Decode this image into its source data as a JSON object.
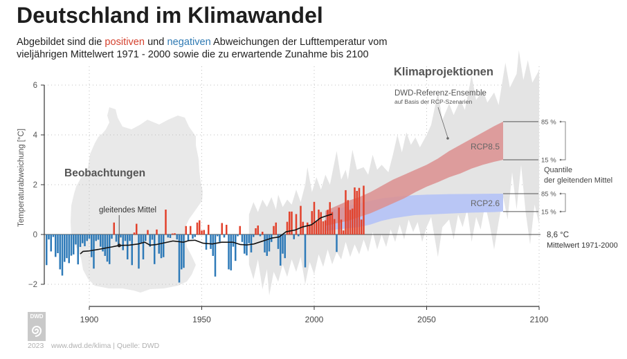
{
  "title": "Deutschland im Klimawandel",
  "subtitle": {
    "line1_prefix": "Abgebildet sind die",
    "positive_word": "positiven",
    "connector": "und",
    "negative_word": "negativen",
    "line1_suffix": "Abweichungen der Lufttemperatur vom",
    "line2": "vieljährigen Mittelwert 1971 - 2000 sowie die zu erwartende Zunahme bis 2100"
  },
  "logo": {
    "text": "DWD",
    "icon": "dwd-spiral-icon"
  },
  "footer": {
    "year": "2023",
    "source": "www.dwd.de/klima | Quelle: DWD"
  },
  "colors": {
    "positive": "#e2412b",
    "negative": "#2e7ab8",
    "rcp85": "#dc8f8f",
    "rcp26": "#b6c4f6",
    "ensemble": "#e4e4e4",
    "map": "#e9e9e9",
    "moving_average": "#111111"
  },
  "chart_data": {
    "type": "bar",
    "title": "Deutschland im Klimawandel",
    "xlabel": "",
    "ylabel": "Temperaturabweichung [°C]",
    "xlim": [
      1880,
      2100
    ],
    "ylim": [
      -2.9,
      6
    ],
    "x_ticks": [
      1900,
      1950,
      2000,
      2050,
      2100
    ],
    "x_tick_labels": [
      "1900",
      "1950",
      "2000",
      "2050",
      "2100"
    ],
    "y_ticks": [
      -2,
      0,
      2,
      4,
      6
    ],
    "y_tick_labels": [
      "−2",
      "0",
      "2",
      "4",
      "6"
    ],
    "grid": true,
    "reference": {
      "value": 0,
      "label": "8,6 °C",
      "sublabel": "Mittelwert 1971-2000"
    },
    "observations": {
      "name": "Beobachtungen",
      "start_year": 1881,
      "end_year": 2022,
      "values": [
        -1.23,
        -0.2,
        -0.68,
        -0.1,
        -0.9,
        -0.75,
        -1.4,
        -1.65,
        -1.1,
        -0.95,
        -1.15,
        -0.85,
        -0.8,
        -0.4,
        -1.2,
        -0.5,
        -0.35,
        -0.47,
        -0.26,
        -0.17,
        -0.91,
        -1.37,
        -0.26,
        -0.21,
        -0.49,
        -0.68,
        -0.86,
        -1.09,
        -1.19,
        -0.17,
        0.48,
        -0.29,
        -0.44,
        -0.12,
        -0.63,
        -0.26,
        -1.0,
        -0.26,
        -1.23,
        0.08,
        0.43,
        -1.37,
        -0.35,
        -1.0,
        -0.26,
        0.18,
        -0.49,
        -0.21,
        -1.19,
        0.2,
        -0.77,
        -0.95,
        -0.91,
        1.0,
        -0.12,
        -0.14,
        0.04,
        0.05,
        -0.2,
        -1.93,
        -1.4,
        -1.34,
        0.34,
        -0.26,
        0.34,
        -0.17,
        -0.1,
        0.48,
        0.57,
        0.16,
        0.18,
        -0.61,
        0.39,
        -0.58,
        -0.86,
        -1.69,
        -0.07,
        -0.3,
        0.46,
        -0.12,
        0.39,
        -1.4,
        -1.44,
        -0.49,
        -1.06,
        -0.07,
        0.34,
        -0.3,
        -0.77,
        -0.84,
        -0.35,
        -0.72,
        -0.1,
        0.25,
        0.36,
        -0.07,
        0.11,
        -0.72,
        -0.86,
        -0.68,
        -0.3,
        0.34,
        0.48,
        -0.58,
        -1.25,
        -0.77,
        -0.95,
        0.51,
        0.92,
        0.92,
        -0.19,
        0.82,
        -0.07,
        1.15,
        0.51,
        -1.32,
        0.48,
        0.39,
        0.94,
        1.31,
        0.53,
        1.0,
        0.9,
        0.53,
        0.57,
        0.99,
        1.3,
        0.9,
        0.62,
        -0.7,
        1.08,
        0.6,
        0.16,
        1.78,
        1.38,
        0.99,
        1.04,
        1.89,
        1.75,
        1.87,
        0.6,
        1.96
      ]
    },
    "moving_average": {
      "name": "gleitendes Mittel",
      "points": [
        [
          1896,
          -0.78
        ],
        [
          1897.2,
          -0.68
        ],
        [
          1900,
          -0.66
        ],
        [
          1904,
          -0.6
        ],
        [
          1907.5,
          -0.54
        ],
        [
          1910,
          -0.5
        ],
        [
          1913.3,
          -0.44
        ],
        [
          1917.7,
          -0.43
        ],
        [
          1921.8,
          -0.38
        ],
        [
          1924.7,
          -0.31
        ],
        [
          1927,
          -0.43
        ],
        [
          1930,
          -0.4
        ],
        [
          1934.2,
          -0.32
        ],
        [
          1937.2,
          -0.26
        ],
        [
          1941.9,
          -0.31
        ],
        [
          1944.5,
          -0.24
        ],
        [
          1947,
          -0.23
        ],
        [
          1950.6,
          -0.35
        ],
        [
          1954.7,
          -0.38
        ],
        [
          1958.8,
          -0.31
        ],
        [
          1963.9,
          -0.31
        ],
        [
          1967,
          -0.4
        ],
        [
          1970,
          -0.42
        ],
        [
          1973.2,
          -0.38
        ],
        [
          1978.3,
          -0.23
        ],
        [
          1981.3,
          -0.14
        ],
        [
          1984.4,
          -0.1
        ],
        [
          1987.5,
          0.11
        ],
        [
          1991.6,
          0.18
        ],
        [
          1994.7,
          0.3
        ],
        [
          1998.8,
          0.39
        ],
        [
          2002.9,
          0.67
        ],
        [
          2005.5,
          0.75
        ],
        [
          2008,
          0.82
        ]
      ]
    },
    "ensemble": {
      "name": "DWD-Referenz-Ensemble",
      "upper": [
        [
          1971,
          0.8
        ],
        [
          1973,
          1.3
        ],
        [
          1975,
          0.9
        ],
        [
          1977,
          1.4
        ],
        [
          1979,
          1.1
        ],
        [
          1981,
          1.5
        ],
        [
          1983,
          1.0
        ],
        [
          1984,
          1.6
        ],
        [
          1986,
          1.1
        ],
        [
          1988,
          1.4
        ],
        [
          1990,
          1.2
        ],
        [
          1992,
          1.8
        ],
        [
          1994,
          1.3
        ],
        [
          1996,
          2.0
        ],
        [
          1997,
          2.7
        ],
        [
          1999,
          1.7
        ],
        [
          2001,
          2.3
        ],
        [
          2003,
          1.8
        ],
        [
          2005,
          2.4
        ],
        [
          2007,
          2.0
        ],
        [
          2010,
          3.35
        ],
        [
          2012,
          2.2
        ],
        [
          2014,
          2.6
        ],
        [
          2015,
          2.2
        ],
        [
          2017,
          3.4
        ],
        [
          2019,
          2.6
        ],
        [
          2022,
          2.7
        ],
        [
          2024,
          2.4
        ],
        [
          2026,
          3.2
        ],
        [
          2028,
          2.6
        ],
        [
          2030,
          2.8
        ],
        [
          2033,
          2.5
        ],
        [
          2035,
          3.2
        ],
        [
          2037,
          4.0
        ],
        [
          2039,
          3.3
        ],
        [
          2041,
          4.1
        ],
        [
          2043,
          3.6
        ],
        [
          2045,
          3.9
        ],
        [
          2047,
          3.5
        ],
        [
          2050,
          4.0
        ],
        [
          2052,
          4.4
        ],
        [
          2055,
          5.7
        ],
        [
          2057,
          4.6
        ],
        [
          2060,
          5.25
        ],
        [
          2062,
          4.8
        ],
        [
          2065,
          5.4
        ],
        [
          2067,
          5.0
        ],
        [
          2070,
          6.4
        ],
        [
          2072,
          5.4
        ],
        [
          2075,
          5.8
        ],
        [
          2077,
          5.3
        ],
        [
          2080,
          5.7
        ],
        [
          2082,
          5.2
        ],
        [
          2085,
          6.9
        ],
        [
          2087,
          5.9
        ],
        [
          2090,
          6.45
        ],
        [
          2091,
          7.4
        ],
        [
          2093,
          6.2
        ],
        [
          2095,
          7.0
        ],
        [
          2097,
          6.1
        ],
        [
          2100,
          6.6
        ]
      ],
      "lower": [
        [
          1971,
          -1.2
        ],
        [
          1973,
          -1.8
        ],
        [
          1975,
          -1.0
        ],
        [
          1977,
          -2.2
        ],
        [
          1979,
          -1.4
        ],
        [
          1980,
          -2.45
        ],
        [
          1982,
          -1.5
        ],
        [
          1984,
          -1.9
        ],
        [
          1986,
          -1.2
        ],
        [
          1988,
          -1.7
        ],
        [
          1990,
          -1.0
        ],
        [
          1992,
          -1.5
        ],
        [
          1994,
          -0.9
        ],
        [
          1996,
          -2.0
        ],
        [
          1998,
          -1.1
        ],
        [
          2000,
          -1.6
        ],
        [
          2002,
          -0.8
        ],
        [
          2004,
          -1.3
        ],
        [
          2006,
          -0.6
        ],
        [
          2008,
          -1.2
        ],
        [
          2010,
          -0.7
        ],
        [
          2012,
          -1.0
        ],
        [
          2014,
          -0.3
        ],
        [
          2016,
          -0.9
        ],
        [
          2018,
          -0.4
        ],
        [
          2020,
          -0.8
        ],
        [
          2022,
          -0.2
        ],
        [
          2024,
          -0.7
        ],
        [
          2026,
          0.1
        ],
        [
          2028,
          -0.6
        ],
        [
          2030,
          0.0
        ],
        [
          2032,
          -0.5
        ],
        [
          2034,
          0.2
        ],
        [
          2036,
          -0.3
        ],
        [
          2038,
          0.4
        ],
        [
          2040,
          -0.2
        ],
        [
          2042,
          0.6
        ],
        [
          2044,
          0.1
        ],
        [
          2046,
          0.5
        ],
        [
          2048,
          -0.3
        ],
        [
          2050,
          0.3
        ],
        [
          2052,
          0.7
        ],
        [
          2055,
          -0.9
        ],
        [
          2057,
          0.3
        ],
        [
          2060,
          0.6
        ],
        [
          2062,
          -0.2
        ],
        [
          2064,
          0.8
        ],
        [
          2066,
          0.3
        ],
        [
          2068,
          1.0
        ],
        [
          2070,
          -0.3
        ],
        [
          2072,
          0.7
        ],
        [
          2074,
          0.2
        ],
        [
          2076,
          1.2
        ],
        [
          2078,
          0.4
        ],
        [
          2080,
          -0.6
        ],
        [
          2082,
          0.5
        ],
        [
          2084,
          1.5
        ],
        [
          2086,
          0.6
        ],
        [
          2088,
          2.5
        ],
        [
          2090,
          1.0
        ],
        [
          2092,
          2.8
        ],
        [
          2094,
          0.9
        ],
        [
          2096,
          -0.4
        ],
        [
          2098,
          1.2
        ],
        [
          2100,
          0.4
        ]
      ]
    },
    "scenarios": [
      {
        "name": "RCP8.5",
        "years": [
          2005,
          2010,
          2015,
          2020,
          2025,
          2030,
          2035,
          2040,
          2045,
          2050,
          2055,
          2060,
          2065,
          2070,
          2075,
          2080,
          2084
        ],
        "p15": [
          0.35,
          0.45,
          0.55,
          0.7,
          0.85,
          1.05,
          1.25,
          1.45,
          1.7,
          1.92,
          2.1,
          2.3,
          2.45,
          2.65,
          2.8,
          2.92,
          3.0
        ],
        "p85": [
          0.95,
          1.15,
          1.35,
          1.5,
          1.7,
          1.95,
          2.2,
          2.4,
          2.6,
          2.8,
          3.05,
          3.35,
          3.6,
          3.85,
          4.1,
          4.35,
          4.53
        ]
      },
      {
        "name": "RCP2.6",
        "years": [
          2005,
          2010,
          2015,
          2020,
          2025,
          2030,
          2035,
          2040,
          2045,
          2050,
          2060,
          2070,
          2080,
          2084
        ],
        "p15": [
          0.15,
          0.2,
          0.25,
          0.3,
          0.4,
          0.55,
          0.65,
          0.72,
          0.78,
          0.8,
          0.84,
          0.88,
          0.9,
          0.92
        ],
        "p85": [
          0.85,
          1.0,
          1.15,
          1.25,
          1.35,
          1.45,
          1.5,
          1.55,
          1.58,
          1.6,
          1.62,
          1.63,
          1.64,
          1.64
        ]
      }
    ],
    "quantile_labels": {
      "upper": "85 %",
      "lower": "15 %",
      "caption_line1": "Quantile",
      "caption_line2": "der gleitenden Mittel"
    },
    "annotations": {
      "observations_heading": "Beobachtungen",
      "projections_heading": "Klimaprojektionen",
      "ensemble_label": "DWD-Referenz-Ensemble",
      "ensemble_sublabel": "auf Basis der RCP-Szenarien",
      "moving_average_label": "gleitendes Mittel"
    },
    "legend": "none"
  }
}
